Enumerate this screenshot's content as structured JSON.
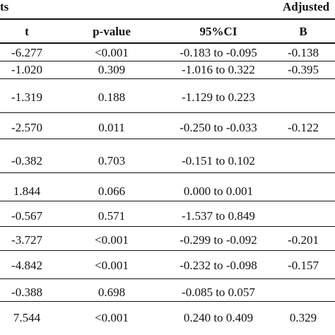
{
  "header": {
    "top_left": "ts",
    "top_right": "Adjusted",
    "columns": [
      "t",
      "p-value",
      "95%CI",
      "B"
    ]
  },
  "rows": [
    {
      "t": "-6.277",
      "p": "<0.001",
      "ci": "-0.183 to -0.095",
      "b": "-0.138"
    },
    {
      "t": "-1.020",
      "p": "0.309",
      "ci": "-1.016 to 0.322",
      "b": "-0.395"
    },
    {
      "t": "-1.319",
      "p": "0.188",
      "ci": "-1.129 to 0.223",
      "b": ""
    },
    {
      "t": "-2.570",
      "p": "0.011",
      "ci": "-0.250 to -0.033",
      "b": "-0.122"
    },
    {
      "t": "-0.382",
      "p": "0.703",
      "ci": "-0.151 to 0.102",
      "b": ""
    },
    {
      "t": "1.844",
      "p": "0.066",
      "ci": "0.000 to 0.001",
      "b": ""
    },
    {
      "t": "-0.567",
      "p": "0.571",
      "ci": "-1.537 to 0.849",
      "b": ""
    },
    {
      "t": "-3.727",
      "p": "<0.001",
      "ci": "-0.299 to -0.092",
      "b": "-0.201"
    },
    {
      "t": "-4.842",
      "p": "<0.001",
      "ci": "-0.232 to -0.098",
      "b": "-0.157"
    },
    {
      "t": "-0.388",
      "p": "0.698",
      "ci": "-0.085 to 0.057",
      "b": ""
    },
    {
      "t": "7.544",
      "p": "<0.001",
      "ci": "0.240 to 0.409",
      "b": "0.329"
    }
  ]
}
